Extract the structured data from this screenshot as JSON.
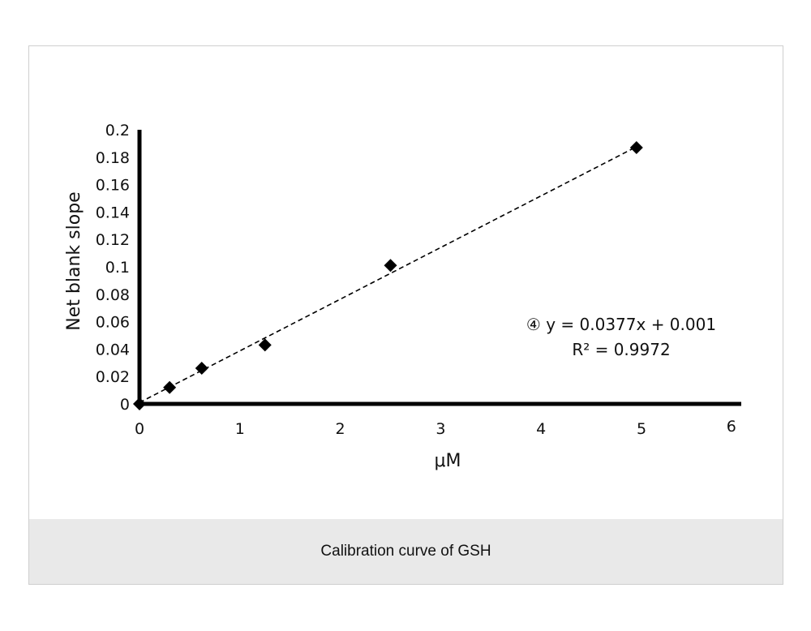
{
  "caption": "Calibration curve of GSH",
  "chart_data": {
    "type": "scatter",
    "title": "",
    "xlabel": "μM",
    "ylabel": "Net blank slope",
    "xlim": [
      0,
      6
    ],
    "ylim": [
      0,
      0.2
    ],
    "x_ticks": [
      "0",
      "1",
      "2",
      "3",
      "4",
      "5",
      "6"
    ],
    "y_ticks": [
      "0",
      "0.02",
      "0.04",
      "0.06",
      "0.08",
      "0.1",
      "0.12",
      "0.14",
      "0.16",
      "0.18",
      "0.2"
    ],
    "grid": false,
    "series": [
      {
        "marker": "diamond",
        "color": "#000000",
        "x": [
          0,
          0.3,
          0.62,
          1.25,
          2.5,
          4.95
        ],
        "y": [
          0,
          0.012,
          0.026,
          0.043,
          0.101,
          0.187
        ]
      }
    ],
    "trendline": {
      "style": "dashed",
      "slope": 0.0377,
      "intercept": 0.001
    },
    "annotation": {
      "equation": "④ y = 0.0377x + 0.001",
      "r_squared": "R² = 0.9972"
    }
  }
}
